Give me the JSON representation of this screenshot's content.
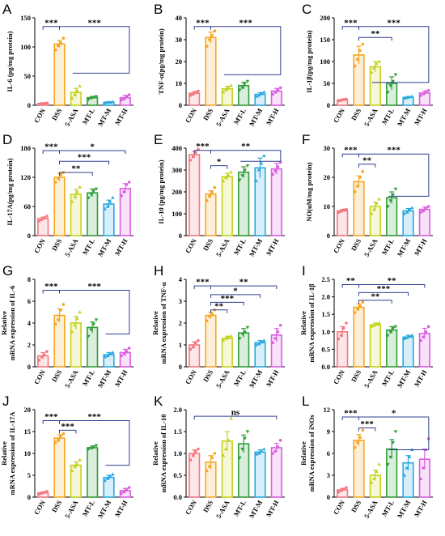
{
  "groups": [
    "CON",
    "DSS",
    "5-ASA",
    "MT-L",
    "MT-M",
    "MT-H"
  ],
  "colors": [
    "#f4777f",
    "#f5a623",
    "#c5d21c",
    "#2f9e3a",
    "#29a8e0",
    "#d95fe0"
  ],
  "chart_data": [
    {
      "letter": "A",
      "type": "bar",
      "ylabel": "IL-6 (pg/mg protein)",
      "ylim": [
        0,
        150
      ],
      "yticks": [
        "0",
        "50",
        "100",
        "150"
      ],
      "categories": [
        "CON",
        "DSS",
        "5-ASA",
        "MT-L",
        "MT-M",
        "MT-H"
      ],
      "values": [
        3,
        105,
        22,
        13,
        5,
        13
      ],
      "errors": [
        1,
        6,
        7,
        2,
        1,
        4
      ],
      "points": [
        [
          2,
          3,
          3,
          4
        ],
        [
          95,
          102,
          107,
          115
        ],
        [
          12,
          18,
          25,
          33
        ],
        [
          10,
          12,
          14,
          15
        ],
        [
          4,
          5,
          5,
          6
        ],
        [
          9,
          11,
          15,
          18
        ]
      ],
      "brackets": [
        {
          "from": 0,
          "to": 1,
          "y": 135,
          "label": "***"
        },
        {
          "from": 1,
          "to": [
            2,
            5
          ],
          "y": 135,
          "low": 55,
          "label": "***"
        }
      ]
    },
    {
      "letter": "B",
      "type": "bar",
      "ylabel": "TNF-α(pg/mg protein)",
      "ylim": [
        0,
        40
      ],
      "yticks": [
        "0",
        "10",
        "20",
        "30",
        "40"
      ],
      "categories": [
        "CON",
        "DSS",
        "5-ASA",
        "MT-L",
        "MT-M",
        "MT-H"
      ],
      "values": [
        5.5,
        31,
        7.5,
        9,
        5,
        6.5
      ],
      "errors": [
        0.8,
        2.5,
        1.2,
        1.5,
        0.8,
        1.2
      ],
      "points": [
        [
          4.5,
          5,
          6,
          6.5
        ],
        [
          27,
          30,
          32,
          34
        ],
        [
          6,
          7,
          8,
          9
        ],
        [
          7,
          8,
          10,
          11
        ],
        [
          4,
          4.5,
          5.5,
          6
        ],
        [
          5,
          6,
          7,
          8
        ]
      ],
      "brackets": [
        {
          "from": 0,
          "to": 1,
          "y": 36,
          "label": "***"
        },
        {
          "from": 1,
          "to": [
            2,
            5
          ],
          "y": 36,
          "low": 14,
          "label": "***"
        }
      ]
    },
    {
      "letter": "C",
      "type": "bar",
      "ylabel": "IL-1β(pg/mg protein)",
      "ylim": [
        0,
        200
      ],
      "yticks": [
        "0",
        "50",
        "100",
        "150",
        "200"
      ],
      "categories": [
        "CON",
        "DSS",
        "5-ASA",
        "MT-L",
        "MT-M",
        "MT-H"
      ],
      "values": [
        12,
        115,
        88,
        50,
        18,
        28
      ],
      "errors": [
        2,
        20,
        12,
        15,
        2,
        5
      ],
      "points": [
        [
          10,
          11,
          13,
          14
        ],
        [
          90,
          105,
          125,
          140
        ],
        [
          75,
          85,
          95,
          100
        ],
        [
          30,
          45,
          55,
          70
        ],
        [
          16,
          17,
          19,
          20
        ],
        [
          22,
          26,
          30,
          34
        ]
      ],
      "brackets": [
        {
          "from": 0,
          "to": 1,
          "y": 180,
          "label": "***"
        },
        {
          "from": 1,
          "to": [
            2,
            5
          ],
          "y": 180,
          "low": 52,
          "label": "***"
        },
        {
          "from": 1,
          "to": 3,
          "y": 155,
          "label": "**"
        }
      ]
    },
    {
      "letter": "D",
      "type": "bar",
      "ylabel": "IL-17A(pg/mg protein)",
      "ylim": [
        0,
        180
      ],
      "yticks": [
        "0",
        "60",
        "120",
        "180"
      ],
      "categories": [
        "CON",
        "DSS",
        "5-ASA",
        "MT-L",
        "MT-M",
        "MT-H"
      ],
      "values": [
        35,
        120,
        85,
        88,
        65,
        97
      ],
      "errors": [
        3,
        8,
        10,
        8,
        8,
        10
      ],
      "points": [
        [
          30,
          33,
          37,
          40
        ],
        [
          110,
          118,
          125,
          130
        ],
        [
          70,
          80,
          90,
          100
        ],
        [
          78,
          85,
          92,
          96
        ],
        [
          55,
          60,
          70,
          78
        ],
        [
          82,
          90,
          105,
          110
        ]
      ],
      "brackets": [
        {
          "from": 0,
          "to": 1,
          "y": 175,
          "label": "***"
        },
        {
          "from": 1,
          "to": 5,
          "y": 175,
          "label": "*"
        },
        {
          "from": 1,
          "to": 4,
          "y": 153,
          "label": "***"
        },
        {
          "from": 1,
          "to": 3,
          "y": 130,
          "label": "**"
        }
      ]
    },
    {
      "letter": "E",
      "type": "bar",
      "ylabel": "IL-10 (pg/mg protein)",
      "ylim": [
        0,
        400
      ],
      "yticks": [
        "0",
        "100",
        "200",
        "300",
        "400"
      ],
      "categories": [
        "CON",
        "DSS",
        "5-ASA",
        "MT-L",
        "MT-M",
        "MT-H"
      ],
      "values": [
        370,
        190,
        270,
        290,
        310,
        305
      ],
      "errors": [
        15,
        15,
        15,
        25,
        45,
        25
      ],
      "points": [
        [
          345,
          360,
          380,
          395
        ],
        [
          160,
          180,
          200,
          220
        ],
        [
          250,
          265,
          275,
          290
        ],
        [
          255,
          275,
          300,
          320
        ],
        [
          250,
          300,
          330,
          365
        ],
        [
          280,
          295,
          315,
          335
        ]
      ],
      "brackets": [
        {
          "from": 0,
          "to": 1,
          "y": 390,
          "label": "***"
        },
        {
          "from": 1,
          "to": 2,
          "y": 320,
          "label": "*"
        },
        {
          "from": 1,
          "to": [
            3,
            5
          ],
          "y": 390,
          "low": 340,
          "label": "**"
        }
      ]
    },
    {
      "letter": "F",
      "type": "bar",
      "ylabel": "NO(uM/mg protein)",
      "ylim": [
        0,
        30
      ],
      "yticks": [
        "0",
        "10",
        "20",
        "30"
      ],
      "categories": [
        "CON",
        "DSS",
        "5-ASA",
        "MT-L",
        "MT-M",
        "MT-H"
      ],
      "values": [
        8.5,
        18.5,
        10,
        13,
        8.5,
        9
      ],
      "errors": [
        0.5,
        2,
        1.5,
        2,
        0.8,
        0.8
      ],
      "points": [
        [
          8,
          8.3,
          8.8,
          9
        ],
        [
          15,
          17,
          20,
          22
        ],
        [
          7.5,
          9,
          11,
          12.5
        ],
        [
          10,
          12,
          14,
          16
        ],
        [
          7.5,
          8,
          9,
          9.5
        ],
        [
          8,
          8.5,
          9.5,
          10
        ]
      ],
      "brackets": [
        {
          "from": 0,
          "to": 1,
          "y": 28,
          "label": "***"
        },
        {
          "from": 1,
          "to": 2,
          "y": 24.5,
          "label": "**"
        },
        {
          "from": 1,
          "to": [
            3,
            5
          ],
          "y": 28,
          "low": 13.5,
          "label": "***"
        }
      ]
    },
    {
      "letter": "G",
      "type": "bar",
      "ylabel": "Relative mRNA expression of IL-6",
      "ylim": [
        0,
        8
      ],
      "yticks": [
        "0",
        "2",
        "4",
        "6",
        "8"
      ],
      "categories": [
        "CON",
        "DSS",
        "5-ASA",
        "MT-L",
        "MT-M",
        "MT-H"
      ],
      "values": [
        1,
        4.7,
        4,
        3.6,
        1.1,
        1.3
      ],
      "errors": [
        0.3,
        0.6,
        0.6,
        0.5,
        0.2,
        0.3
      ],
      "points": [
        [
          0.6,
          0.9,
          1.1,
          1.4
        ],
        [
          3.9,
          4.3,
          5.2,
          5.7
        ],
        [
          3.2,
          3.8,
          4.4,
          5
        ],
        [
          2.8,
          3.4,
          3.9,
          4.3
        ],
        [
          0.9,
          1,
          1.2,
          1.3
        ],
        [
          1,
          1.2,
          1.4,
          1.7
        ]
      ],
      "brackets": [
        {
          "from": 0,
          "to": 1,
          "y": 7,
          "label": "***"
        },
        {
          "from": 1,
          "to": [
            4,
            5
          ],
          "y": 7,
          "low": 3,
          "label": "***"
        }
      ]
    },
    {
      "letter": "H",
      "type": "bar",
      "ylabel": "Relative mRNA expression of TNF-α",
      "ylim": [
        0,
        4
      ],
      "yticks": [
        "0",
        "1",
        "2",
        "3",
        "4"
      ],
      "categories": [
        "CON",
        "DSS",
        "5-ASA",
        "MT-L",
        "MT-M",
        "MT-H"
      ],
      "values": [
        1,
        2.35,
        1.3,
        1.55,
        1.1,
        1.45
      ],
      "errors": [
        0.15,
        0.15,
        0.1,
        0.2,
        0.1,
        0.3
      ],
      "points": [
        [
          0.8,
          0.9,
          1.1,
          1.2
        ],
        [
          2.1,
          2.3,
          2.4,
          2.6
        ],
        [
          1.2,
          1.3,
          1.35,
          1.4
        ],
        [
          1.3,
          1.5,
          1.6,
          1.8
        ],
        [
          1,
          1.05,
          1.15,
          1.2
        ],
        [
          1.1,
          1.3,
          1.6,
          1.9
        ]
      ],
      "brackets": [
        {
          "from": 0,
          "to": 1,
          "y": 3.7,
          "label": "***"
        },
        {
          "from": 1,
          "to": 5,
          "y": 3.7,
          "label": "**"
        },
        {
          "from": 1,
          "to": 4,
          "y": 3.3,
          "label": "*"
        },
        {
          "from": 1,
          "to": 3,
          "y": 2.95,
          "label": "***"
        },
        {
          "from": 1,
          "to": 2,
          "y": 2.6,
          "label": "**"
        }
      ]
    },
    {
      "letter": "I",
      "type": "bar",
      "ylabel": "Relative mRNA expression of IL-1β",
      "ylim": [
        0,
        2.5
      ],
      "yticks": [
        "0.0",
        "0.5",
        "1.0",
        "1.5",
        "2.0",
        "2.5"
      ],
      "categories": [
        "CON",
        "DSS",
        "5-ASA",
        "MT-L",
        "MT-M",
        "MT-H"
      ],
      "values": [
        1,
        1.7,
        1.2,
        1.05,
        0.85,
        0.95
      ],
      "errors": [
        0.15,
        0.1,
        0.05,
        0.1,
        0.05,
        0.15
      ],
      "points": [
        [
          0.8,
          0.9,
          1.1,
          1.25
        ],
        [
          1.55,
          1.65,
          1.75,
          1.85
        ],
        [
          1.15,
          1.18,
          1.22,
          1.25
        ],
        [
          0.9,
          1,
          1.1,
          1.15
        ],
        [
          0.8,
          0.83,
          0.87,
          0.9
        ],
        [
          0.75,
          0.85,
          1,
          1.15
        ]
      ],
      "brackets": [
        {
          "from": 0,
          "to": 1,
          "y": 2.35,
          "label": "**"
        },
        {
          "from": 1,
          "to": 5,
          "y": 2.35,
          "label": "**"
        },
        {
          "from": 1,
          "to": 4,
          "y": 2.12,
          "label": "***"
        },
        {
          "from": 1,
          "to": 3,
          "y": 1.9,
          "label": "**"
        }
      ]
    },
    {
      "letter": "J",
      "type": "bar",
      "ylabel": "Relative mRNA expression of IL-17A",
      "ylim": [
        0,
        20
      ],
      "yticks": [
        "0",
        "5",
        "10",
        "15",
        "20"
      ],
      "categories": [
        "CON",
        "DSS",
        "5-ASA",
        "MT-L",
        "MT-M",
        "MT-H"
      ],
      "values": [
        1,
        13.5,
        7.3,
        11.3,
        4.5,
        1.5
      ],
      "errors": [
        0.2,
        0.8,
        0.8,
        0.4,
        0.5,
        0.5
      ],
      "points": [
        [
          0.7,
          0.9,
          1.1,
          1.3
        ],
        [
          12.5,
          13,
          14,
          14.5
        ],
        [
          6,
          7,
          7.5,
          8.5
        ],
        [
          11,
          11.2,
          11.5,
          11.8
        ],
        [
          3.8,
          4.2,
          4.8,
          5.2
        ],
        [
          0.9,
          1.2,
          1.7,
          2.2
        ]
      ],
      "brackets": [
        {
          "from": 0,
          "to": 1,
          "y": 17.5,
          "label": "***"
        },
        {
          "from": 1,
          "to": [
            4,
            5
          ],
          "y": 17.5,
          "low": 7.3,
          "label": "***"
        },
        {
          "from": 1,
          "to": 2,
          "y": 15.3,
          "label": "***"
        }
      ]
    },
    {
      "letter": "K",
      "type": "bar",
      "ylabel": "Relative mRNA expression of IL-10",
      "ylim": [
        0,
        2.0
      ],
      "yticks": [
        "0.0",
        "0.5",
        "1.0",
        "1.5",
        "2.0"
      ],
      "categories": [
        "CON",
        "DSS",
        "5-ASA",
        "MT-L",
        "MT-M",
        "MT-H"
      ],
      "values": [
        1,
        0.8,
        1.28,
        1.22,
        1.03,
        1.13
      ],
      "errors": [
        0.08,
        0.15,
        0.22,
        0.2,
        0.05,
        0.1
      ],
      "points": [
        [
          0.85,
          0.95,
          1.05,
          1.1
        ],
        [
          0.6,
          0.7,
          0.9,
          1.0
        ],
        [
          0.95,
          1.1,
          1.3,
          1.8
        ],
        [
          0.9,
          1.1,
          1.35,
          1.5
        ],
        [
          0.98,
          1.0,
          1.05,
          1.1
        ],
        [
          1.0,
          1.05,
          1.15,
          1.3
        ]
      ],
      "brackets": [
        {
          "from": 0,
          "to": 5,
          "y": 1.85,
          "label": "ns"
        }
      ]
    },
    {
      "letter": "L",
      "type": "bar",
      "ylabel": "Relative mRNA expression of iNOs",
      "ylim": [
        0,
        12
      ],
      "yticks": [
        "0",
        "3",
        "6",
        "9",
        "12"
      ],
      "categories": [
        "CON",
        "DSS",
        "5-ASA",
        "MT-L",
        "MT-M",
        "MT-H"
      ],
      "values": [
        1,
        7.8,
        3,
        6.6,
        4.7,
        5.2
      ],
      "errors": [
        0.2,
        0.8,
        0.7,
        1.3,
        1.0,
        1.4
      ],
      "points": [
        [
          0.7,
          0.9,
          1.1,
          1.3
        ],
        [
          6.8,
          7.5,
          8.2,
          9.2
        ],
        [
          2,
          2.5,
          3.5,
          4.5
        ],
        [
          4.5,
          5.5,
          7.5,
          9
        ],
        [
          3,
          4,
          5.5,
          6.5
        ],
        [
          2.5,
          4,
          6.5,
          8
        ]
      ],
      "brackets": [
        {
          "from": 0,
          "to": 1,
          "y": 11,
          "label": "***"
        },
        {
          "from": 1,
          "to": 2,
          "y": 9.5,
          "label": "***"
        },
        {
          "from": 1,
          "to": [
            3,
            5
          ],
          "y": 11,
          "low": 6.5,
          "label": "*"
        }
      ]
    }
  ]
}
